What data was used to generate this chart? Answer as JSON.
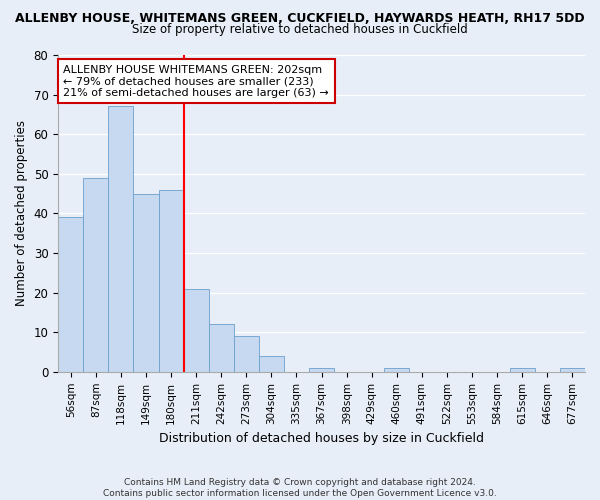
{
  "title": "ALLENBY HOUSE, WHITEMANS GREEN, CUCKFIELD, HAYWARDS HEATH, RH17 5DD",
  "subtitle": "Size of property relative to detached houses in Cuckfield",
  "xlabel": "Distribution of detached houses by size in Cuckfield",
  "ylabel": "Number of detached properties",
  "bar_labels": [
    "56sqm",
    "87sqm",
    "118sqm",
    "149sqm",
    "180sqm",
    "211sqm",
    "242sqm",
    "273sqm",
    "304sqm",
    "335sqm",
    "367sqm",
    "398sqm",
    "429sqm",
    "460sqm",
    "491sqm",
    "522sqm",
    "553sqm",
    "584sqm",
    "615sqm",
    "646sqm",
    "677sqm"
  ],
  "bar_values": [
    39,
    49,
    67,
    45,
    46,
    21,
    12,
    9,
    4,
    0,
    1,
    0,
    0,
    1,
    0,
    0,
    0,
    0,
    1,
    0,
    1
  ],
  "bar_color": "#c6d9f0",
  "bar_edge_color": "#6ca0cc",
  "annotation_text_line1": "ALLENBY HOUSE WHITEMANS GREEN: 202sqm",
  "annotation_text_line2": "← 79% of detached houses are smaller (233)",
  "annotation_text_line3": "21% of semi-detached houses are larger (63) →",
  "red_line_bar_index": 5,
  "footer_line1": "Contains HM Land Registry data © Crown copyright and database right 2024.",
  "footer_line2": "Contains public sector information licensed under the Open Government Licence v3.0.",
  "ylim": [
    0,
    80
  ],
  "yticks": [
    0,
    10,
    20,
    30,
    40,
    50,
    60,
    70,
    80
  ],
  "background_color": "#e8eef8",
  "plot_bg_color": "#e8eef8"
}
